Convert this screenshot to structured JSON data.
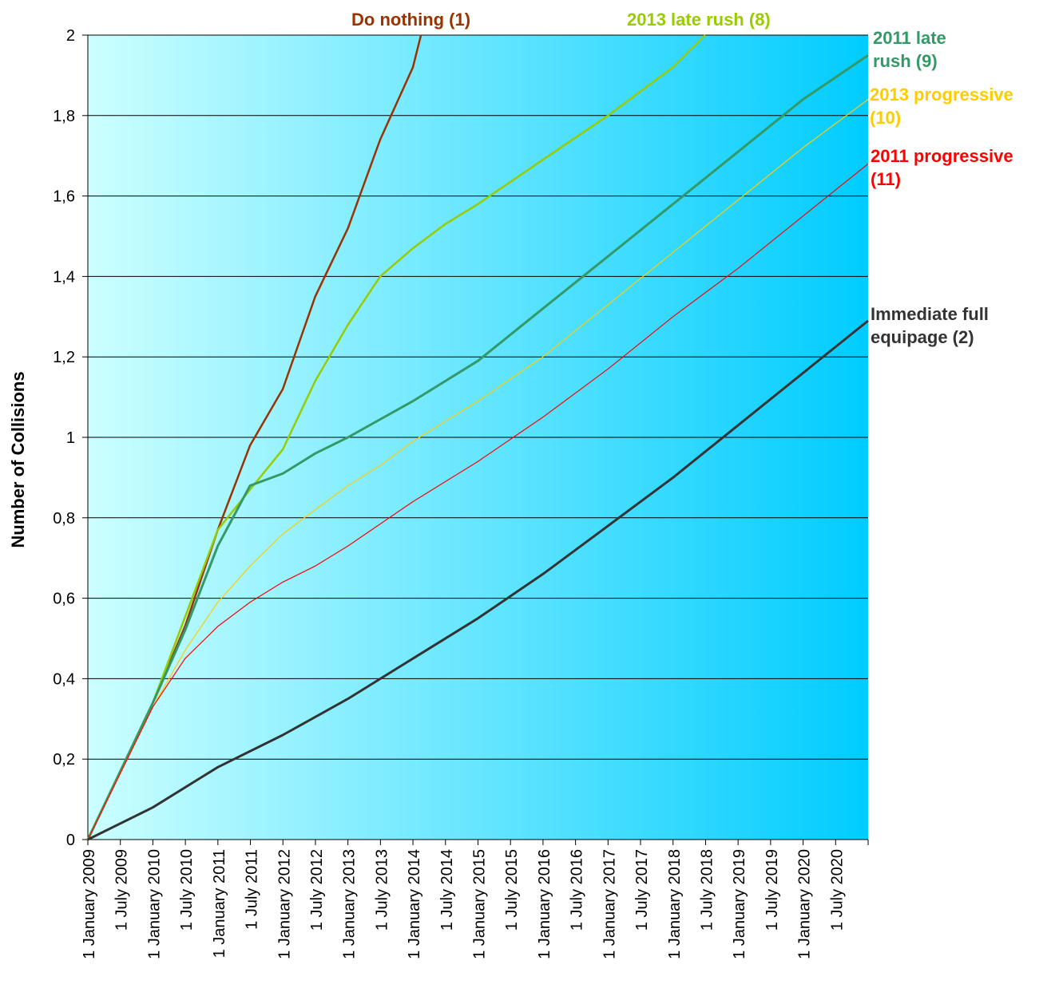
{
  "chart_data": {
    "type": "line",
    "title": "",
    "xlabel": "",
    "ylabel": "Number of Collisions",
    "x_ticks": [
      "1 January 2009",
      "1 July 2009",
      "1 January 2010",
      "1 July 2010",
      "1 January 2011",
      "1 July 2011",
      "1 January 2012",
      "1 July 2012",
      "1 January 2013",
      "1 July 2013",
      "1 January 2014",
      "1 July 2014",
      "1 January 2015",
      "1 July 2015",
      "1 January 2016",
      "1 July 2016",
      "1 January 2017",
      "1 July 2017",
      "1 January 2018",
      "1 July 2018",
      "1 January 2019",
      "1 July 2019",
      "1 January 2020",
      "1 July 2020"
    ],
    "y_ticks": [
      "0",
      "0,2",
      "0,4",
      "0,6",
      "0,8",
      "1",
      "1,2",
      "1,4",
      "1,6",
      "1,8",
      "2"
    ],
    "xlim": [
      "2009-01-01",
      "2021-01-01"
    ],
    "ylim": [
      0,
      2
    ],
    "grid": "horizontal",
    "background": {
      "from": "#ccffff",
      "to": "#00ccff"
    },
    "legend": "inline labels at line ends",
    "series": [
      {
        "name": "Do nothing (1)",
        "color": "#993300",
        "points": [
          [
            "2009-01-01",
            0
          ],
          [
            "2010-01-01",
            0.34
          ],
          [
            "2010-07-01",
            0.53
          ],
          [
            "2011-01-01",
            0.77
          ],
          [
            "2011-07-01",
            0.98
          ],
          [
            "2012-01-01",
            1.12
          ],
          [
            "2012-07-01",
            1.35
          ],
          [
            "2013-01-01",
            1.52
          ],
          [
            "2013-07-01",
            1.74
          ],
          [
            "2014-01-01",
            1.92
          ],
          [
            "2014-02-15",
            2.0
          ]
        ]
      },
      {
        "name": "2013 late rush (8)",
        "color": "#99cc00",
        "points": [
          [
            "2009-01-01",
            0
          ],
          [
            "2010-01-01",
            0.34
          ],
          [
            "2011-01-01",
            0.77
          ],
          [
            "2011-07-01",
            0.87
          ],
          [
            "2012-01-01",
            0.97
          ],
          [
            "2012-07-01",
            1.14
          ],
          [
            "2013-01-01",
            1.28
          ],
          [
            "2013-07-01",
            1.4
          ],
          [
            "2014-01-01",
            1.47
          ],
          [
            "2014-07-01",
            1.53
          ],
          [
            "2015-01-01",
            1.58
          ],
          [
            "2016-01-01",
            1.69
          ],
          [
            "2017-01-01",
            1.8
          ],
          [
            "2018-01-01",
            1.92
          ],
          [
            "2018-07-01",
            2.0
          ]
        ]
      },
      {
        "name": "2011 late rush (9)",
        "color": "#339966",
        "points": [
          [
            "2009-01-01",
            0
          ],
          [
            "2010-01-01",
            0.34
          ],
          [
            "2010-07-01",
            0.52
          ],
          [
            "2011-01-01",
            0.73
          ],
          [
            "2011-07-01",
            0.88
          ],
          [
            "2012-01-01",
            0.91
          ],
          [
            "2012-07-01",
            0.96
          ],
          [
            "2013-01-01",
            1.0
          ],
          [
            "2014-01-01",
            1.09
          ],
          [
            "2015-01-01",
            1.19
          ],
          [
            "2016-01-01",
            1.32
          ],
          [
            "2017-01-01",
            1.45
          ],
          [
            "2018-01-01",
            1.58
          ],
          [
            "2019-01-01",
            1.71
          ],
          [
            "2020-01-01",
            1.84
          ],
          [
            "2021-01-01",
            1.95
          ]
        ]
      },
      {
        "name": "2013 progressive (10)",
        "color": "#ffcc00",
        "points": [
          [
            "2009-01-01",
            0
          ],
          [
            "2010-01-01",
            0.33
          ],
          [
            "2010-07-01",
            0.47
          ],
          [
            "2011-01-01",
            0.59
          ],
          [
            "2011-07-01",
            0.68
          ],
          [
            "2012-01-01",
            0.76
          ],
          [
            "2012-07-01",
            0.82
          ],
          [
            "2013-01-01",
            0.88
          ],
          [
            "2013-07-01",
            0.93
          ],
          [
            "2014-01-01",
            0.99
          ],
          [
            "2015-01-01",
            1.09
          ],
          [
            "2016-01-01",
            1.2
          ],
          [
            "2017-01-01",
            1.33
          ],
          [
            "2018-01-01",
            1.46
          ],
          [
            "2019-01-01",
            1.59
          ],
          [
            "2020-01-01",
            1.72
          ],
          [
            "2021-01-01",
            1.84
          ]
        ]
      },
      {
        "name": "2011 progressive (11)",
        "color": "#ff0000",
        "points": [
          [
            "2009-01-01",
            0
          ],
          [
            "2010-01-01",
            0.33
          ],
          [
            "2010-07-01",
            0.45
          ],
          [
            "2011-01-01",
            0.53
          ],
          [
            "2011-07-01",
            0.59
          ],
          [
            "2012-01-01",
            0.64
          ],
          [
            "2012-07-01",
            0.68
          ],
          [
            "2013-01-01",
            0.73
          ],
          [
            "2014-01-01",
            0.84
          ],
          [
            "2015-01-01",
            0.94
          ],
          [
            "2016-01-01",
            1.05
          ],
          [
            "2017-01-01",
            1.17
          ],
          [
            "2018-01-01",
            1.3
          ],
          [
            "2019-01-01",
            1.42
          ],
          [
            "2020-01-01",
            1.55
          ],
          [
            "2021-01-01",
            1.68
          ]
        ]
      },
      {
        "name": "Immediate full equipage (2)",
        "color": "#333333",
        "points": [
          [
            "2009-01-01",
            0
          ],
          [
            "2010-01-01",
            0.08
          ],
          [
            "2011-01-01",
            0.18
          ],
          [
            "2012-01-01",
            0.26
          ],
          [
            "2013-01-01",
            0.35
          ],
          [
            "2014-01-01",
            0.45
          ],
          [
            "2015-01-01",
            0.55
          ],
          [
            "2016-01-01",
            0.66
          ],
          [
            "2017-01-01",
            0.78
          ],
          [
            "2018-01-01",
            0.9
          ],
          [
            "2019-01-01",
            1.03
          ],
          [
            "2020-01-01",
            1.16
          ],
          [
            "2021-01-01",
            1.29
          ]
        ]
      }
    ]
  }
}
